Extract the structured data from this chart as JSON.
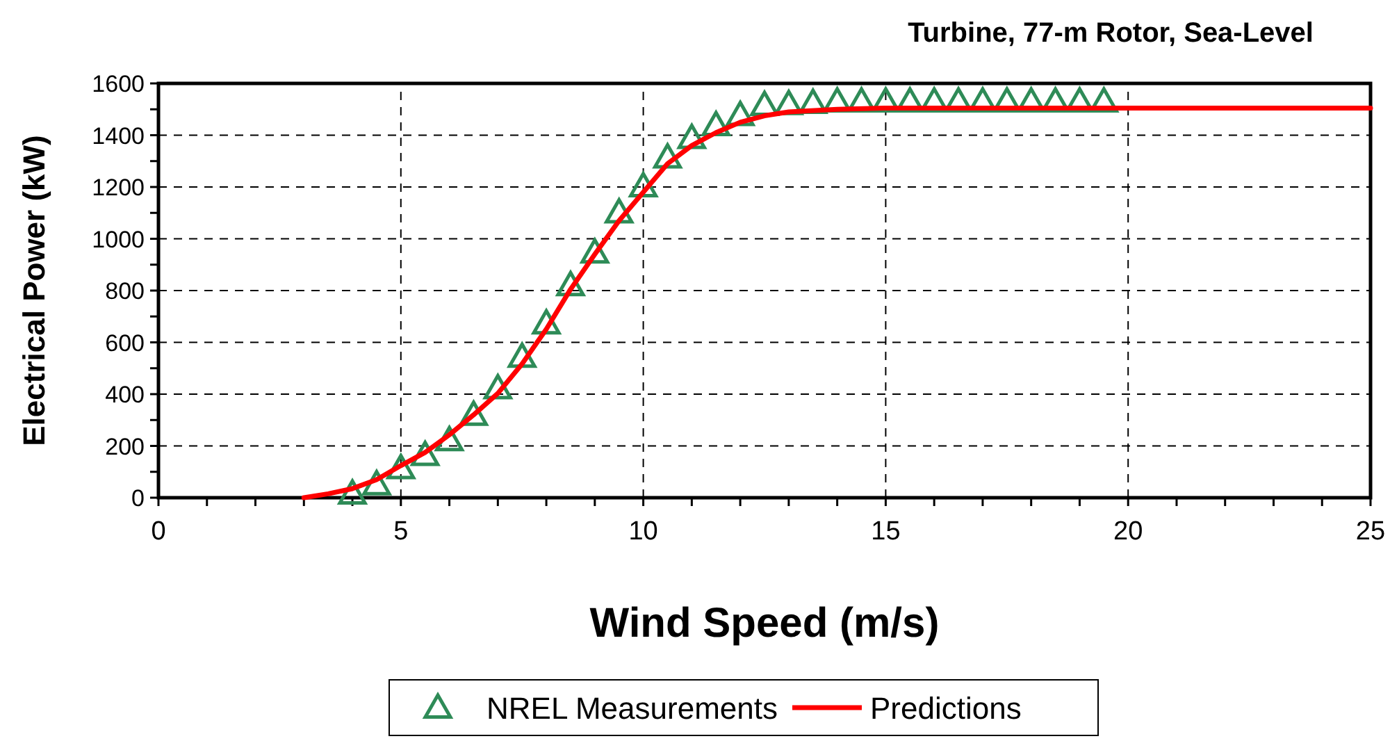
{
  "chart_data": {
    "type": "scatter",
    "title": "Turbine, 77-m Rotor, Sea-Level",
    "xlabel": "Wind Speed (m/s)",
    "ylabel": "Electrical Power (kW)",
    "xlim": [
      0,
      25
    ],
    "ylim": [
      0,
      1600
    ],
    "xticks": [
      0,
      {
        "value": 1,
        "label": null
      },
      {
        "value": 2,
        "label": null
      },
      {
        "value": 3,
        "label": null
      },
      {
        "value": 4,
        "label": null
      },
      5,
      {
        "value": 6,
        "label": null
      },
      {
        "value": 7,
        "label": null
      },
      {
        "value": 8,
        "label": null
      },
      {
        "value": 9,
        "label": null
      },
      10,
      {
        "value": 11,
        "label": null
      },
      {
        "value": 12,
        "label": null
      },
      {
        "value": 13,
        "label": null
      },
      {
        "value": 14,
        "label": null
      },
      15,
      {
        "value": 16,
        "label": null
      },
      {
        "value": 17,
        "label": null
      },
      {
        "value": 18,
        "label": null
      },
      {
        "value": 19,
        "label": null
      },
      20,
      {
        "value": 21,
        "label": null
      },
      {
        "value": 22,
        "label": null
      },
      {
        "value": 23,
        "label": null
      },
      {
        "value": 24,
        "label": null
      },
      25
    ],
    "yticks": [
      0,
      {
        "value": 100,
        "label": null
      },
      200,
      {
        "value": 300,
        "label": null
      },
      400,
      {
        "value": 500,
        "label": null
      },
      600,
      {
        "value": 700,
        "label": null
      },
      800,
      {
        "value": 900,
        "label": null
      },
      1000,
      {
        "value": 1100,
        "label": null
      },
      1200,
      {
        "value": 1300,
        "label": null
      },
      1400,
      {
        "value": 1500,
        "label": null
      },
      1600
    ],
    "grid": true,
    "legend": "bottom",
    "series": [
      {
        "name": "NREL Measurements",
        "marker": "triangle",
        "color": "#2e8b57",
        "x": [
          4,
          4.5,
          5,
          5.5,
          6,
          6.5,
          7,
          7.5,
          8,
          8.5,
          9,
          9.5,
          10,
          10.5,
          11,
          11.5,
          12,
          12.5,
          13,
          13.5,
          14,
          14.5,
          15,
          15.5,
          16,
          16.5,
          17,
          17.5,
          18,
          18.5,
          19,
          19.5
        ],
        "values": [
          16,
          52,
          114,
          165,
          222,
          320,
          423,
          544,
          673,
          821,
          947,
          1102,
          1203,
          1314,
          1389,
          1439,
          1478,
          1517,
          1520,
          1525,
          1530,
          1530,
          1530,
          1530,
          1530,
          1530,
          1530,
          1530,
          1530,
          1530,
          1530,
          1530
        ]
      },
      {
        "name": "Predictions",
        "type": "line",
        "marker": "none",
        "line_style": "solid",
        "color": "#ff0000",
        "x": [
          3,
          3.5,
          4,
          4.5,
          5,
          5.5,
          6,
          6.5,
          7,
          7.5,
          8,
          8.5,
          9,
          9.5,
          10,
          10.5,
          11,
          11.5,
          12,
          12.5,
          13,
          14,
          15,
          25
        ],
        "values": [
          0,
          15,
          35,
          70,
          124,
          175,
          243,
          320,
          403,
          517,
          651,
          805,
          940,
          1070,
          1180,
          1290,
          1360,
          1410,
          1450,
          1475,
          1490,
          1500,
          1505,
          1505
        ]
      }
    ]
  }
}
